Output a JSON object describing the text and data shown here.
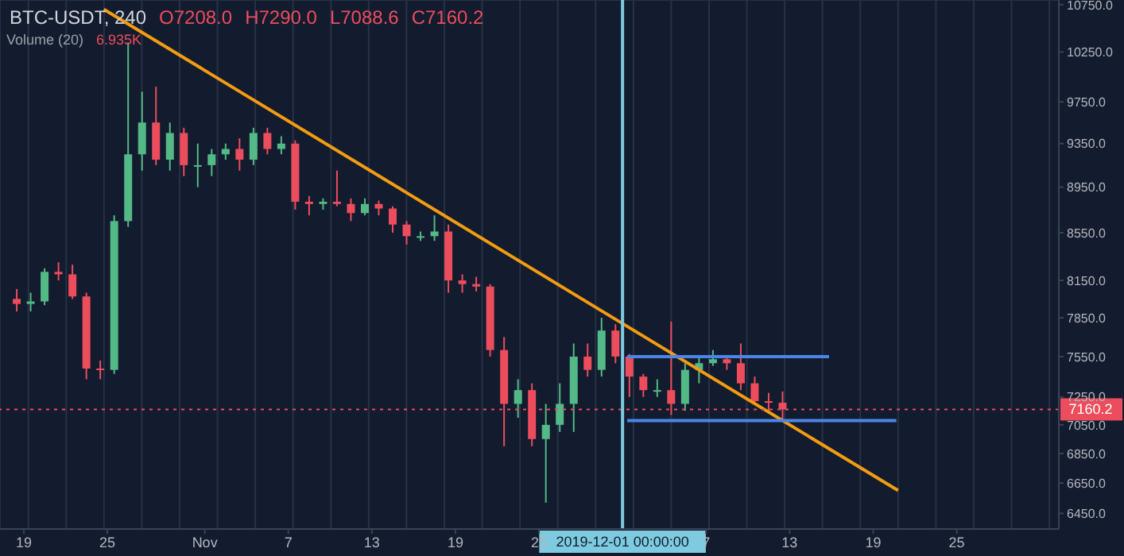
{
  "chart_data": {
    "type": "candlestick",
    "title": "BTC-USDT, 240",
    "annotations": [
      "O7208.0",
      "H7290.0",
      "L7088.6",
      "C7160.2",
      "Volume (20)",
      "6.935K"
    ],
    "x": [
      "2019-10-18T12:00",
      "2019-10-19T12:00",
      "2019-10-20T12:00",
      "2019-10-21T12:00",
      "2019-10-22T12:00",
      "2019-10-23T12:00",
      "2019-10-24T12:00",
      "2019-10-25T12:00",
      "2019-10-26T12:00",
      "2019-10-27T12:00",
      "2019-10-28T12:00",
      "2019-10-29T12:00",
      "2019-10-30T12:00",
      "2019-10-31T12:00",
      "2019-11-01T12:00",
      "2019-11-02T12:00",
      "2019-11-03T12:00",
      "2019-11-04T12:00",
      "2019-11-05T12:00",
      "2019-11-06T12:00",
      "2019-11-07T12:00",
      "2019-11-08T12:00",
      "2019-11-09T12:00",
      "2019-11-10T12:00",
      "2019-11-11T12:00",
      "2019-11-12T12:00",
      "2019-11-13T12:00",
      "2019-11-14T12:00",
      "2019-11-15T12:00",
      "2019-11-16T12:00",
      "2019-11-17T12:00",
      "2019-11-18T12:00",
      "2019-11-19T12:00",
      "2019-11-20T12:00",
      "2019-11-21T12:00",
      "2019-11-22T12:00",
      "2019-11-23T12:00",
      "2019-11-24T12:00",
      "2019-11-25T12:00",
      "2019-11-26T12:00",
      "2019-11-27T12:00",
      "2019-11-28T12:00",
      "2019-11-29T12:00",
      "2019-11-30T12:00",
      "2019-12-01T12:00",
      "2019-12-02T12:00",
      "2019-12-03T12:00",
      "2019-12-04T12:00",
      "2019-12-05T12:00",
      "2019-12-06T12:00",
      "2019-12-07T12:00",
      "2019-12-08T12:00",
      "2019-12-09T12:00",
      "2019-12-10T12:00",
      "2019-12-11T12:00",
      "2019-12-12T12:00"
    ],
    "ohlc": [
      [
        8000,
        8080,
        7900,
        7960
      ],
      [
        7960,
        8050,
        7900,
        7980
      ],
      [
        7980,
        8250,
        7950,
        8220
      ],
      [
        8220,
        8300,
        8150,
        8200
      ],
      [
        8200,
        8280,
        8000,
        8020
      ],
      [
        8020,
        8050,
        7380,
        7460
      ],
      [
        7460,
        7520,
        7380,
        7450
      ],
      [
        7450,
        8700,
        7420,
        8650
      ],
      [
        8650,
        10350,
        8600,
        9250
      ],
      [
        9250,
        9850,
        9100,
        9550
      ],
      [
        9550,
        9900,
        9150,
        9200
      ],
      [
        9200,
        9550,
        9100,
        9450
      ],
      [
        9450,
        9500,
        9050,
        9150
      ],
      [
        9150,
        9350,
        8950,
        9150
      ],
      [
        9150,
        9300,
        9050,
        9250
      ],
      [
        9250,
        9350,
        9200,
        9300
      ],
      [
        9300,
        9400,
        9100,
        9200
      ],
      [
        9200,
        9500,
        9150,
        9450
      ],
      [
        9450,
        9500,
        9250,
        9300
      ],
      [
        9300,
        9420,
        9250,
        9350
      ],
      [
        9350,
        9380,
        8750,
        8820
      ],
      [
        8820,
        8870,
        8700,
        8800
      ],
      [
        8800,
        8850,
        8750,
        8820
      ],
      [
        8820,
        9100,
        8780,
        8800
      ],
      [
        8800,
        8850,
        8650,
        8720
      ],
      [
        8720,
        8850,
        8700,
        8800
      ],
      [
        8800,
        8830,
        8700,
        8760
      ],
      [
        8760,
        8780,
        8550,
        8620
      ],
      [
        8620,
        8650,
        8450,
        8520
      ],
      [
        8520,
        8560,
        8480,
        8520
      ],
      [
        8520,
        8700,
        8480,
        8560
      ],
      [
        8560,
        8620,
        8050,
        8150
      ],
      [
        8150,
        8200,
        8050,
        8120
      ],
      [
        8120,
        8180,
        8060,
        8100
      ],
      [
        8100,
        8120,
        7550,
        7600
      ],
      [
        7600,
        7700,
        6900,
        7200
      ],
      [
        7200,
        7380,
        7100,
        7300
      ],
      [
        7300,
        7350,
        6900,
        6950
      ],
      [
        6950,
        7200,
        6520,
        7050
      ],
      [
        7050,
        7350,
        7000,
        7200
      ],
      [
        7200,
        7650,
        7000,
        7550
      ],
      [
        7550,
        7650,
        7400,
        7450
      ],
      [
        7450,
        7850,
        7400,
        7750
      ],
      [
        7750,
        7800,
        7500,
        7550
      ],
      [
        7550,
        7570,
        7250,
        7400
      ],
      [
        7400,
        7420,
        7250,
        7300
      ],
      [
        7300,
        7380,
        7250,
        7300
      ],
      [
        7300,
        7820,
        7120,
        7200
      ],
      [
        7200,
        7500,
        7150,
        7450
      ],
      [
        7450,
        7550,
        7350,
        7500
      ],
      [
        7500,
        7600,
        7480,
        7530
      ],
      [
        7530,
        7560,
        7450,
        7500
      ],
      [
        7500,
        7650,
        7300,
        7350
      ],
      [
        7350,
        7400,
        7200,
        7220
      ],
      [
        7220,
        7280,
        7150,
        7208
      ],
      [
        7208,
        7290,
        7088.6,
        7160.2
      ]
    ],
    "colors": [
      "#eb4d5c",
      "#53b987",
      "#53b987",
      "#eb4d5c",
      "#eb4d5c",
      "#eb4d5c",
      "#eb4d5c",
      "#53b987",
      "#53b987",
      "#53b987",
      "#eb4d5c",
      "#53b987",
      "#eb4d5c",
      "#53b987",
      "#53b987",
      "#53b987",
      "#eb4d5c",
      "#53b987",
      "#eb4d5c",
      "#53b987",
      "#eb4d5c",
      "#eb4d5c",
      "#53b987",
      "#eb4d5c",
      "#eb4d5c",
      "#53b987",
      "#eb4d5c",
      "#eb4d5c",
      "#eb4d5c",
      "#53b987",
      "#53b987",
      "#eb4d5c",
      "#eb4d5c",
      "#eb4d5c",
      "#eb4d5c",
      "#eb4d5c",
      "#53b987",
      "#eb4d5c",
      "#53b987",
      "#53b987",
      "#53b987",
      "#eb4d5c",
      "#53b987",
      "#eb4d5c",
      "#eb4d5c",
      "#eb4d5c",
      "#53b987",
      "#eb4d5c",
      "#53b987",
      "#53b987",
      "#53b987",
      "#eb4d5c",
      "#eb4d5c",
      "#eb4d5c",
      "#eb4d5c",
      "#eb4d5c"
    ],
    "series": [
      {
        "type": "line",
        "color": "#f39c12",
        "x": [
          "2019-10-24T18:00",
          "2019-12-20T19:00"
        ],
        "values": [
          10700,
          6600
        ]
      },
      {
        "type": "line",
        "color": "#4a86e8",
        "x": [
          "2019-12-01T08:00",
          "2019-12-15T20:00"
        ],
        "values": [
          7550,
          7550
        ]
      },
      {
        "type": "line",
        "color": "#4a86e8",
        "x": [
          "2019-12-01T08:00",
          "2019-12-20T16:00"
        ],
        "values": [
          7080,
          7080
        ]
      }
    ],
    "xlim": [
      "2019-10-17T07:00",
      "2020-01-01T08:00"
    ],
    "xticks": [
      {
        "value": "2019-10-19",
        "label": "19"
      },
      {
        "value": "2019-10-25",
        "label": "25"
      },
      {
        "value": "2019-11-01",
        "label": "Nov"
      },
      {
        "value": "2019-11-07",
        "label": "7"
      },
      {
        "value": "2019-11-13",
        "label": "13"
      },
      {
        "value": "2019-11-19",
        "label": "19"
      },
      {
        "value": "2019-11-25",
        "label": "25"
      },
      {
        "value": "2019-12-07",
        "label": "7"
      },
      {
        "value": "2019-12-13",
        "label": "13"
      },
      {
        "value": "2019-12-19",
        "label": "19"
      },
      {
        "value": "2019-12-25",
        "label": "25"
      }
    ],
    "ylim": [
      6350,
      10800
    ],
    "log": true,
    "yticks": [
      {
        "value": 6450,
        "label": "6450.0"
      },
      {
        "value": 6650,
        "label": "6650.0"
      },
      {
        "value": 6850,
        "label": "6850.0"
      },
      {
        "value": 7050,
        "label": "7050.0"
      },
      {
        "value": 7250,
        "label": "7250.0"
      },
      {
        "value": 7550,
        "label": "7550.0"
      },
      {
        "value": 7850,
        "label": "7850.0"
      },
      {
        "value": 8150,
        "label": "8150.0"
      },
      {
        "value": 8550,
        "label": "8550.0"
      },
      {
        "value": 8950,
        "label": "8950.0"
      },
      {
        "value": 9350,
        "label": "9350.0"
      },
      {
        "value": 9750,
        "label": "9750.0"
      },
      {
        "value": 10250,
        "label": "10250.0"
      },
      {
        "value": 10750,
        "label": "10750.0"
      }
    ],
    "ref_lines": [
      {
        "axis": "y",
        "value": 7160.2,
        "label": "7160.2",
        "color": "#eb4d5c",
        "line_style": "dotted"
      },
      {
        "axis": "x",
        "value": "2019-12-01",
        "label": "2019-12-01 00:00:00",
        "color": "#7ecbe0",
        "line_style": "solid"
      }
    ],
    "grid": true
  }
}
